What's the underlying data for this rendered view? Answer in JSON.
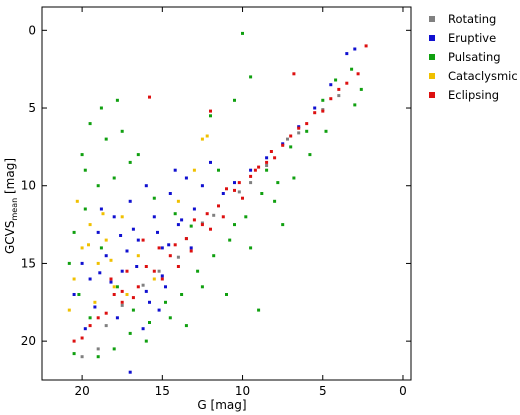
{
  "chart_data": {
    "type": "scatter",
    "xlabel": "G [mag]",
    "ylabel": {
      "main": "GCVS",
      "sub": "mean",
      "unit": " [mag]"
    },
    "xlim": [
      22.5,
      -0.5
    ],
    "ylim": [
      22.5,
      -1.5
    ],
    "x_ticks": [
      20,
      15,
      10,
      5,
      0
    ],
    "y_ticks": [
      0,
      5,
      10,
      15,
      20
    ],
    "grid": false,
    "legend_position": "outside-right-top",
    "series": [
      {
        "name": "Rotating",
        "color": "#808080",
        "points": [
          [
            19.0,
            20.5
          ],
          [
            15.2,
            15.5
          ],
          [
            13.5,
            13.4
          ],
          [
            11.8,
            11.9
          ],
          [
            10.2,
            10.4
          ],
          [
            8.5,
            8.7
          ],
          [
            6.5,
            6.6
          ],
          [
            16.2,
            16.4
          ],
          [
            14.0,
            14.6
          ],
          [
            12.5,
            12.4
          ],
          [
            7.2,
            7.0
          ],
          [
            18.5,
            19.0
          ],
          [
            17.5,
            17.7
          ],
          [
            9.5,
            9.8
          ],
          [
            20.0,
            21.0
          ],
          [
            5.0,
            5.1
          ],
          [
            4.0,
            4.2
          ]
        ]
      },
      {
        "name": "Eruptive",
        "color": "#1010d0",
        "points": [
          [
            20.5,
            17.0
          ],
          [
            20.0,
            15.0
          ],
          [
            19.5,
            16.0
          ],
          [
            19.0,
            13.0
          ],
          [
            18.5,
            14.5
          ],
          [
            18.0,
            12.0
          ],
          [
            17.5,
            15.5
          ],
          [
            17.0,
            11.0
          ],
          [
            16.5,
            13.5
          ],
          [
            16.0,
            16.8
          ],
          [
            15.5,
            12.0
          ],
          [
            15.0,
            14.0
          ],
          [
            14.5,
            10.5
          ],
          [
            14.0,
            12.5
          ],
          [
            13.5,
            9.5
          ],
          [
            13.0,
            11.5
          ],
          [
            12.5,
            10.0
          ],
          [
            16.8,
            12.8
          ],
          [
            17.2,
            14.2
          ],
          [
            18.2,
            16.2
          ],
          [
            19.2,
            17.8
          ],
          [
            15.8,
            17.5
          ],
          [
            15.2,
            18.0
          ],
          [
            14.8,
            16.5
          ],
          [
            17.8,
            18.5
          ],
          [
            16.2,
            19.2
          ],
          [
            15.0,
            15.8
          ],
          [
            13.2,
            14.0
          ],
          [
            12.0,
            8.5
          ],
          [
            11.2,
            10.5
          ],
          [
            10.5,
            9.8
          ],
          [
            9.5,
            9.0
          ],
          [
            8.5,
            8.2
          ],
          [
            7.5,
            7.3
          ],
          [
            6.5,
            6.2
          ],
          [
            5.5,
            5.0
          ],
          [
            4.5,
            3.5
          ],
          [
            3.5,
            1.5
          ],
          [
            3.0,
            1.2
          ],
          [
            17.0,
            22.0
          ],
          [
            18.8,
            11.5
          ],
          [
            16.0,
            10.0
          ],
          [
            14.2,
            9.0
          ],
          [
            19.8,
            19.2
          ],
          [
            16.6,
            15.2
          ],
          [
            17.6,
            13.2
          ],
          [
            18.9,
            15.6
          ],
          [
            15.3,
            13.0
          ],
          [
            14.6,
            13.8
          ],
          [
            13.8,
            12.2
          ]
        ]
      },
      {
        "name": "Pulsating",
        "color": "#10a010",
        "points": [
          [
            20.0,
            8.0
          ],
          [
            19.5,
            6.0
          ],
          [
            19.0,
            10.0
          ],
          [
            18.5,
            7.0
          ],
          [
            18.0,
            9.5
          ],
          [
            17.5,
            6.5
          ],
          [
            17.0,
            8.5
          ],
          [
            19.8,
            11.5
          ],
          [
            20.5,
            13.0
          ],
          [
            20.8,
            15.0
          ],
          [
            20.2,
            17.0
          ],
          [
            19.5,
            18.5
          ],
          [
            18.8,
            5.0
          ],
          [
            17.8,
            4.5
          ],
          [
            12.0,
            5.5
          ],
          [
            10.0,
            0.2
          ],
          [
            10.5,
            4.5
          ],
          [
            9.5,
            3.0
          ],
          [
            11.5,
            9.0
          ],
          [
            10.5,
            12.5
          ],
          [
            9.5,
            14.0
          ],
          [
            8.0,
            11.0
          ],
          [
            7.5,
            12.5
          ],
          [
            9.0,
            18.0
          ],
          [
            11.0,
            17.0
          ],
          [
            12.5,
            16.5
          ],
          [
            13.5,
            19.0
          ],
          [
            14.5,
            18.5
          ],
          [
            16.0,
            20.0
          ],
          [
            17.0,
            19.5
          ],
          [
            18.0,
            20.5
          ],
          [
            19.0,
            21.0
          ],
          [
            20.5,
            20.8
          ],
          [
            8.5,
            9.0
          ],
          [
            7.0,
            7.5
          ],
          [
            6.0,
            6.5
          ],
          [
            5.0,
            4.5
          ],
          [
            4.2,
            3.2
          ],
          [
            3.2,
            2.5
          ],
          [
            2.6,
            3.8
          ],
          [
            3.0,
            4.8
          ],
          [
            4.8,
            6.5
          ],
          [
            5.8,
            8.0
          ],
          [
            6.8,
            9.5
          ],
          [
            7.8,
            9.8
          ],
          [
            8.8,
            10.5
          ],
          [
            9.8,
            12.0
          ],
          [
            10.8,
            13.5
          ],
          [
            11.8,
            14.5
          ],
          [
            12.8,
            15.5
          ],
          [
            13.8,
            17.0
          ],
          [
            14.8,
            17.5
          ],
          [
            15.8,
            18.8
          ],
          [
            16.8,
            18.0
          ],
          [
            17.8,
            16.5
          ],
          [
            18.8,
            14.0
          ],
          [
            19.8,
            9.0
          ],
          [
            16.5,
            8.0
          ],
          [
            15.5,
            10.8
          ],
          [
            14.2,
            11.8
          ],
          [
            13.2,
            12.6
          ]
        ]
      },
      {
        "name": "Cataclysmic",
        "color": "#f0c000",
        "points": [
          [
            20.5,
            16.0
          ],
          [
            20.0,
            14.0
          ],
          [
            19.5,
            12.5
          ],
          [
            19.0,
            15.0
          ],
          [
            18.5,
            13.5
          ],
          [
            18.0,
            16.5
          ],
          [
            17.5,
            12.0
          ],
          [
            20.8,
            18.0
          ],
          [
            19.2,
            17.5
          ],
          [
            18.2,
            14.8
          ],
          [
            12.5,
            7.0
          ],
          [
            12.2,
            6.8
          ],
          [
            13.0,
            9.0
          ],
          [
            14.0,
            11.0
          ],
          [
            16.5,
            14.5
          ],
          [
            17.2,
            17.0
          ],
          [
            15.5,
            16.0
          ],
          [
            20.3,
            11.0
          ],
          [
            19.6,
            13.8
          ],
          [
            18.7,
            11.8
          ]
        ]
      },
      {
        "name": "Eclipsing",
        "color": "#dd1010",
        "points": [
          [
            20.5,
            20.0
          ],
          [
            19.5,
            19.0
          ],
          [
            18.5,
            18.2
          ],
          [
            17.5,
            17.5
          ],
          [
            16.5,
            16.5
          ],
          [
            15.5,
            15.5
          ],
          [
            14.5,
            14.5
          ],
          [
            13.5,
            13.4
          ],
          [
            12.5,
            12.5
          ],
          [
            11.5,
            11.3
          ],
          [
            10.5,
            10.3
          ],
          [
            9.5,
            9.4
          ],
          [
            8.5,
            8.5
          ],
          [
            7.5,
            7.4
          ],
          [
            6.5,
            6.3
          ],
          [
            5.5,
            5.3
          ],
          [
            4.5,
            4.4
          ],
          [
            3.5,
            3.4
          ],
          [
            2.8,
            2.8
          ],
          [
            2.3,
            1.0
          ],
          [
            6.8,
            2.8
          ],
          [
            12.0,
            5.2
          ],
          [
            15.8,
            4.3
          ],
          [
            17.5,
            16.8
          ],
          [
            16.0,
            15.2
          ],
          [
            15.0,
            16.0
          ],
          [
            14.0,
            15.2
          ],
          [
            13.0,
            12.2
          ],
          [
            12.0,
            12.8
          ],
          [
            11.0,
            10.2
          ],
          [
            10.0,
            10.8
          ],
          [
            9.0,
            8.8
          ],
          [
            8.0,
            8.2
          ],
          [
            7.0,
            6.8
          ],
          [
            6.0,
            6.0
          ],
          [
            5.0,
            5.2
          ],
          [
            4.0,
            3.8
          ],
          [
            18.0,
            17.0
          ],
          [
            19.0,
            18.5
          ],
          [
            20.0,
            19.8
          ],
          [
            16.8,
            17.2
          ],
          [
            15.2,
            14.0
          ],
          [
            14.2,
            13.8
          ],
          [
            13.2,
            14.2
          ],
          [
            12.2,
            11.8
          ],
          [
            11.2,
            12.0
          ],
          [
            10.2,
            9.8
          ],
          [
            9.2,
            9.0
          ],
          [
            8.2,
            7.8
          ],
          [
            17.2,
            15.5
          ],
          [
            16.2,
            13.5
          ],
          [
            18.2,
            16.0
          ]
        ]
      }
    ]
  }
}
